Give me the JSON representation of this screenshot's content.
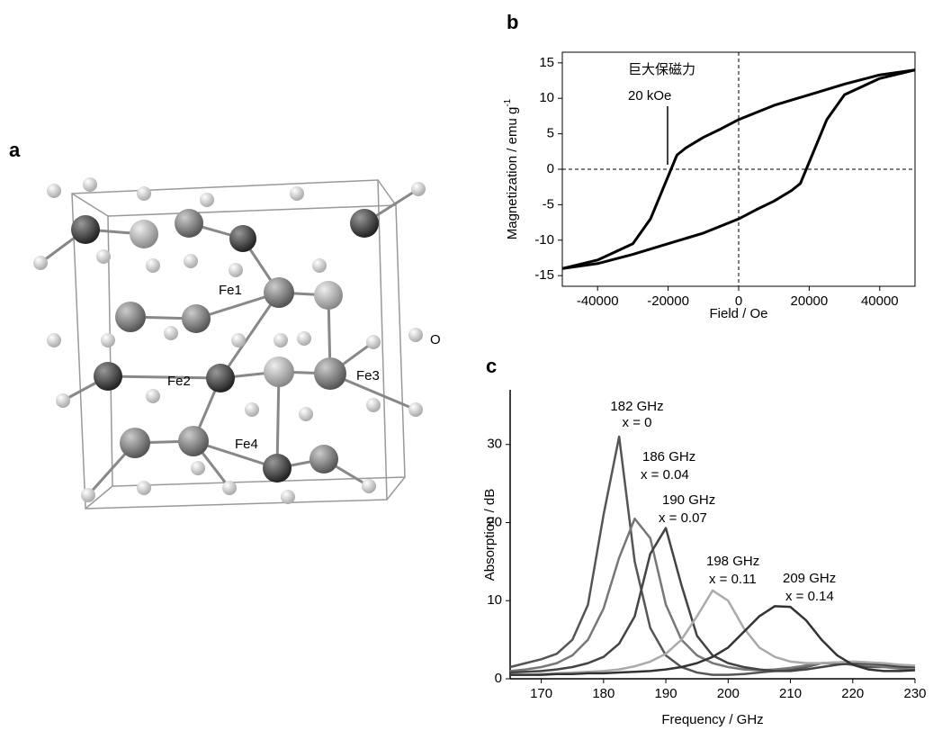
{
  "structure": {
    "panel_label": "a",
    "labels": [
      "Fe1",
      "Fe2",
      "Fe3",
      "Fe4",
      "O"
    ]
  },
  "chart_data": [
    {
      "type": "line",
      "panel_label": "b",
      "x_label": "Field / Oe",
      "y_label": "Magnetization / emu g",
      "y_label_sup": "-1",
      "annotation": [
        "巨大保磁力",
        "20 kOe"
      ],
      "xlim": [
        -50000,
        50000
      ],
      "ylim": [
        -16.5,
        16.5
      ],
      "xticks": [
        -40000,
        -20000,
        0,
        20000,
        40000
      ],
      "yticks": [
        -15,
        -10,
        -5,
        0,
        5,
        10,
        15
      ],
      "frame": true,
      "zero_lines": true,
      "line_width": 3,
      "series": [
        {
          "color": "#000000",
          "x": [
            -50000,
            -40000,
            -30000,
            -25000,
            -20000,
            -17500,
            -15000,
            -10000,
            -5000,
            0,
            10000,
            20000,
            30000,
            40000,
            50000
          ],
          "values": [
            -14,
            -12.8,
            -10.5,
            -7,
            -1,
            2,
            3,
            4.5,
            5.7,
            7,
            9,
            10.5,
            12,
            13.3,
            14
          ]
        },
        {
          "color": "#000000",
          "x": [
            -50000,
            -40000,
            -30000,
            -20000,
            -10000,
            0,
            5000,
            10000,
            15000,
            17500,
            20000,
            25000,
            30000,
            40000,
            50000
          ],
          "values": [
            -14,
            -13.3,
            -12,
            -10.5,
            -9,
            -7,
            -5.7,
            -4.5,
            -3,
            -2,
            1,
            7,
            10.5,
            12.8,
            14
          ]
        }
      ]
    },
    {
      "type": "line",
      "panel_label": "c",
      "x_label": "Frequency / GHz",
      "y_label": "Absorption / dB",
      "xlim": [
        165,
        230
      ],
      "ylim": [
        0,
        37
      ],
      "xticks": [
        170,
        180,
        190,
        200,
        210,
        220,
        230
      ],
      "yticks": [
        0,
        10,
        20,
        30
      ],
      "frame": false,
      "zero_lines": false,
      "line_width": 2.5,
      "x": [
        165,
        167.5,
        170,
        172.5,
        175,
        177.5,
        180,
        182.5,
        185,
        187.5,
        190,
        192.5,
        195,
        197.5,
        200,
        202.5,
        205,
        207.5,
        210,
        212.5,
        215,
        217.5,
        220,
        222.5,
        225,
        227.5,
        230
      ],
      "series": [
        {
          "color": "#555555",
          "label": "182 GHz",
          "sublabel": "x = 0",
          "values": [
            1.5,
            2,
            2.5,
            3.2,
            5,
            9.5,
            21,
            31,
            15,
            6.5,
            3,
            1.5,
            0.8,
            0.5,
            0.5,
            0.6,
            0.8,
            1,
            1.2,
            1.5,
            2,
            2,
            1.8,
            1.5,
            1.5,
            1.5,
            1.6
          ]
        },
        {
          "color": "#777777",
          "label": "186 GHz",
          "sublabel": "x = 0.04",
          "values": [
            1,
            1.2,
            1.5,
            2,
            3,
            5,
            9,
            15.5,
            20.5,
            18,
            9.5,
            5,
            3,
            2,
            1.5,
            1.2,
            1.1,
            1.2,
            1.4,
            1.7,
            2,
            2.1,
            2,
            1.8,
            1.5,
            1.3,
            1.2
          ]
        },
        {
          "color": "#444444",
          "label": "190 GHz",
          "sublabel": "x = 0.07",
          "values": [
            0.8,
            0.9,
            1,
            1.2,
            1.5,
            2,
            2.8,
            4.5,
            8,
            16,
            19.3,
            12,
            5.5,
            3,
            2,
            1.5,
            1.2,
            1,
            1,
            1.2,
            1.5,
            1.8,
            2,
            2,
            1.8,
            1.6,
            1.5
          ]
        },
        {
          "color": "#aaaaaa",
          "label": "198 GHz",
          "sublabel": "x = 0.11",
          "values": [
            0.5,
            0.5,
            0.6,
            0.7,
            0.8,
            0.9,
            1,
            1.2,
            1.6,
            2.2,
            3.2,
            5,
            8,
            11.3,
            10,
            6.5,
            4,
            2.8,
            2.2,
            2,
            2,
            2.1,
            2.2,
            2.1,
            2,
            1.8,
            1.7
          ]
        },
        {
          "color": "#333333",
          "label": "209 GHz",
          "sublabel": "x = 0.14",
          "values": [
            0.5,
            0.5,
            0.5,
            0.6,
            0.6,
            0.7,
            0.7,
            0.8,
            0.9,
            1,
            1.2,
            1.5,
            2,
            2.8,
            4,
            6,
            8,
            9.3,
            9.2,
            7.5,
            5,
            3,
            1.8,
            1.2,
            1,
            1,
            1.1
          ]
        }
      ]
    }
  ]
}
